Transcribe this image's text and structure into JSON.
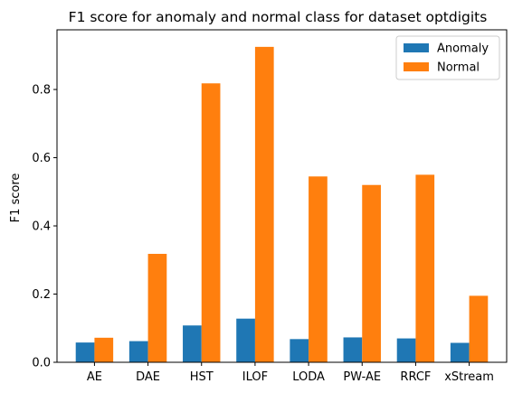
{
  "chart_data": {
    "type": "bar",
    "title": "F1 score for anomaly and normal class for dataset optdigits",
    "xlabel": "",
    "ylabel": "F1 score",
    "categories": [
      "AE",
      "DAE",
      "HST",
      "ILOF",
      "LODA",
      "PW-AE",
      "RRCF",
      "xStream"
    ],
    "series": [
      {
        "name": "Anomaly",
        "color": "#1f77b4",
        "values": [
          0.058,
          0.062,
          0.108,
          0.128,
          0.068,
          0.073,
          0.07,
          0.057
        ]
      },
      {
        "name": "Normal",
        "color": "#ff7f0e",
        "values": [
          0.072,
          0.318,
          0.818,
          0.925,
          0.545,
          0.52,
          0.55,
          0.195
        ]
      }
    ],
    "ylim": [
      0,
      0.975
    ],
    "yticks": [
      0.0,
      0.2,
      0.4,
      0.6,
      0.8
    ],
    "ytick_labels": [
      "0.0",
      "0.2",
      "0.4",
      "0.6",
      "0.8"
    ],
    "grid": false,
    "legend_position": "top-right"
  }
}
